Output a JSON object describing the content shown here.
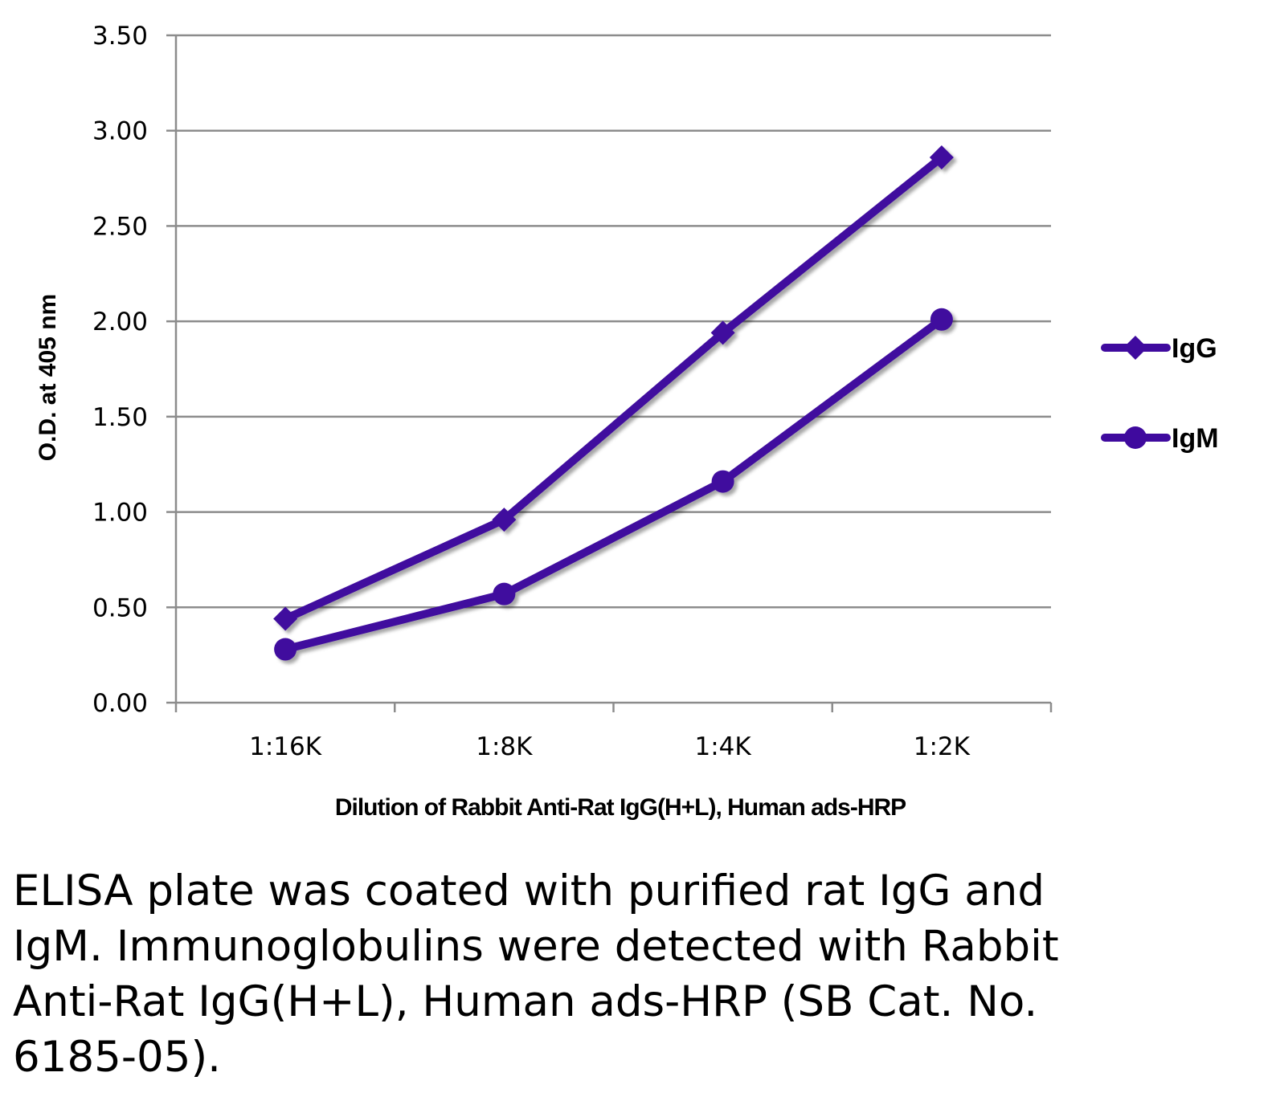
{
  "chart_data": {
    "type": "line",
    "title": "",
    "xlabel": "Dilution of Rabbit Anti-Rat IgG(H+L), Human ads-HRP",
    "ylabel": "O.D. at 405 nm",
    "categories": [
      "1:16K",
      "1:8K",
      "1:4K",
      "1:2K"
    ],
    "ylim": [
      0,
      3.5
    ],
    "yticks": [
      "0.00",
      "0.50",
      "1.00",
      "1.50",
      "2.00",
      "2.50",
      "3.00",
      "3.50"
    ],
    "grid": true,
    "legend_position": "right",
    "series": [
      {
        "name": "IgG",
        "marker": "diamond",
        "color": "#3f0a9e",
        "values": [
          0.44,
          0.96,
          1.94,
          2.86
        ]
      },
      {
        "name": "IgM",
        "marker": "circle",
        "color": "#3f0a9e",
        "values": [
          0.28,
          0.57,
          1.16,
          2.01
        ]
      }
    ]
  },
  "caption": "ELISA plate was coated with purified rat IgG and IgM.  Immunoglobulins were detected with Rabbit Anti-Rat IgG(H+L), Human ads-HRP (SB Cat. No. 6185-05)."
}
